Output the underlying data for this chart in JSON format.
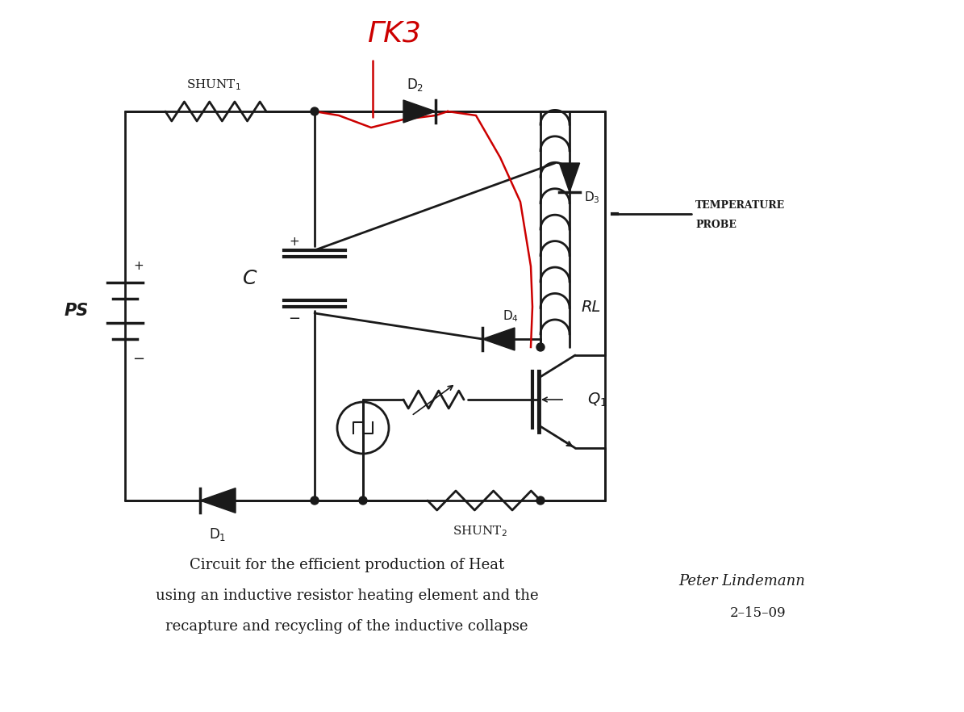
{
  "bg_color": "#ffffff",
  "line_color": "#1a1a1a",
  "red_color": "#cc0000",
  "title_lines": [
    "Circuit for the efficient production of Heat",
    "using an inductive resistor heating element and the",
    "recapture and recycling of the inductive collapse"
  ],
  "figsize": [
    11.95,
    8.82
  ],
  "dpi": 100
}
